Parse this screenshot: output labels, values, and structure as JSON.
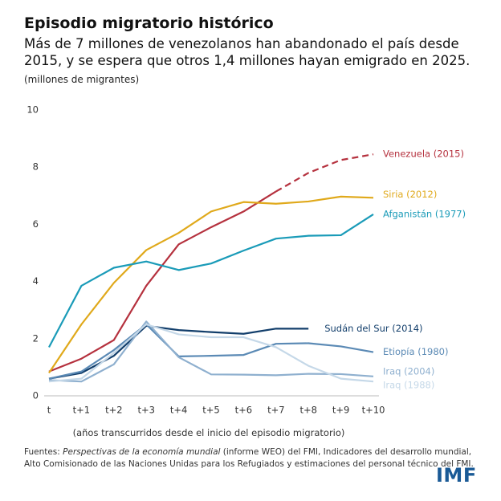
{
  "chart_data": {
    "type": "line",
    "title": "Episodio migratorio histórico",
    "subtitle": "Más de 7 millones de venezolanos han abandonado el país desde 2015, y se espera que otros 1,4 millones hayan emigrado en 2025.",
    "y_axis_label": "(millones de migrantes)",
    "x_axis_label": "(años transcurridos desde el inicio del episodio migratorio)",
    "source_prefix": "Fuentes: ",
    "source_italic": "Perspectivas de la economía mundial",
    "source_rest": " (informe WEO) del FMI, Indicadores del desarrollo mundial, Alto Comisionado de las Naciones Unidas para los Refugiados y estimaciones del personal técnico del FMI.",
    "logo": "IMF",
    "categories": [
      "t",
      "t+1",
      "t+2",
      "t+3",
      "t+4",
      "t+5",
      "t+6",
      "t+7",
      "t+8",
      "t+9",
      "t+10"
    ],
    "ylim": [
      0,
      10
    ],
    "yticks": [
      0,
      2,
      4,
      6,
      8,
      10
    ],
    "grid": false,
    "series": [
      {
        "name": "Venezuela (2015)",
        "color": "#b5313e",
        "dash_from": 7,
        "values": [
          0.85,
          1.3,
          1.95,
          3.85,
          5.3,
          5.9,
          6.45,
          7.15,
          7.8,
          8.25,
          8.45
        ]
      },
      {
        "name": "Siria (2012)",
        "color": "#e0a91b",
        "values": [
          0.8,
          2.5,
          3.95,
          5.1,
          5.7,
          6.45,
          6.78,
          6.72,
          6.8,
          6.97,
          6.93
        ]
      },
      {
        "name": "Afganistán (1977)",
        "color": "#1a9bb8",
        "values": [
          1.7,
          3.85,
          4.48,
          4.7,
          4.4,
          4.63,
          5.08,
          5.5,
          5.6,
          5.62,
          6.35
        ]
      },
      {
        "name": "Sudán del Sur (2014)",
        "color": "#123e6b",
        "values": [
          0.6,
          0.8,
          1.4,
          2.45,
          2.3,
          2.23,
          2.17,
          2.35,
          2.35,
          null,
          null
        ]
      },
      {
        "name": "Etiopía (1980)",
        "color": "#5b8ab5",
        "values": [
          0.6,
          0.85,
          1.6,
          2.5,
          1.38,
          1.4,
          1.43,
          1.82,
          1.84,
          1.73,
          1.53
        ]
      },
      {
        "name": "Iraq (2004)",
        "color": "#8fb0cf",
        "values": [
          0.55,
          0.5,
          1.1,
          2.6,
          1.35,
          0.75,
          0.74,
          0.72,
          0.77,
          0.76,
          0.68
        ]
      },
      {
        "name": "Iraq (1988)",
        "color": "#c5d8e8",
        "values": [
          0.5,
          0.6,
          1.5,
          2.5,
          2.15,
          2.05,
          2.05,
          1.7,
          1.05,
          0.6,
          0.5
        ]
      }
    ]
  }
}
